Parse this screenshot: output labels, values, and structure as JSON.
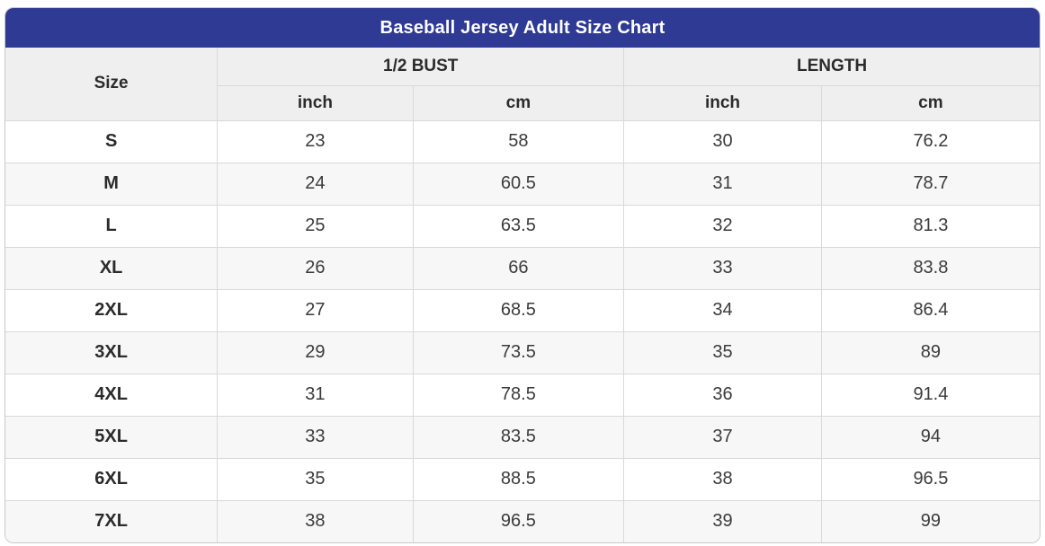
{
  "chart_data": {
    "type": "table",
    "title": "Baseball Jersey Adult Size Chart",
    "header": {
      "size_label": "Size",
      "groups": [
        {
          "label": "1/2 BUST",
          "units": [
            "inch",
            "cm"
          ]
        },
        {
          "label": "LENGTH",
          "units": [
            "inch",
            "cm"
          ]
        }
      ]
    },
    "columns": [
      "Size",
      "1/2 BUST inch",
      "1/2 BUST cm",
      "LENGTH inch",
      "LENGTH cm"
    ],
    "rows": [
      {
        "size": "S",
        "values": [
          "23",
          "58",
          "30",
          "76.2"
        ]
      },
      {
        "size": "M",
        "values": [
          "24",
          "60.5",
          "31",
          "78.7"
        ]
      },
      {
        "size": "L",
        "values": [
          "25",
          "63.5",
          "32",
          "81.3"
        ]
      },
      {
        "size": "XL",
        "values": [
          "26",
          "66",
          "33",
          "83.8"
        ]
      },
      {
        "size": "2XL",
        "values": [
          "27",
          "68.5",
          "34",
          "86.4"
        ]
      },
      {
        "size": "3XL",
        "values": [
          "29",
          "73.5",
          "35",
          "89"
        ]
      },
      {
        "size": "4XL",
        "values": [
          "31",
          "78.5",
          "36",
          "91.4"
        ]
      },
      {
        "size": "5XL",
        "values": [
          "33",
          "83.5",
          "37",
          "94"
        ]
      },
      {
        "size": "6XL",
        "values": [
          "35",
          "88.5",
          "38",
          "96.5"
        ]
      },
      {
        "size": "7XL",
        "values": [
          "38",
          "96.5",
          "39",
          "99"
        ]
      }
    ],
    "layout": {
      "grid": true,
      "striped_rows": true,
      "column_width_percents": [
        20.5,
        18.9,
        20.4,
        19.1,
        21.1
      ]
    }
  },
  "colors": {
    "title_bar_bg": "#2E3A94",
    "title_bar_text": "#FFFFFF",
    "subheader_bg": "#EFEFEF",
    "row_alt_bg": "#F7F7F7",
    "grid_border": "#D9D9D9",
    "outer_border": "#C9C9C9",
    "body_text": "#333333"
  }
}
